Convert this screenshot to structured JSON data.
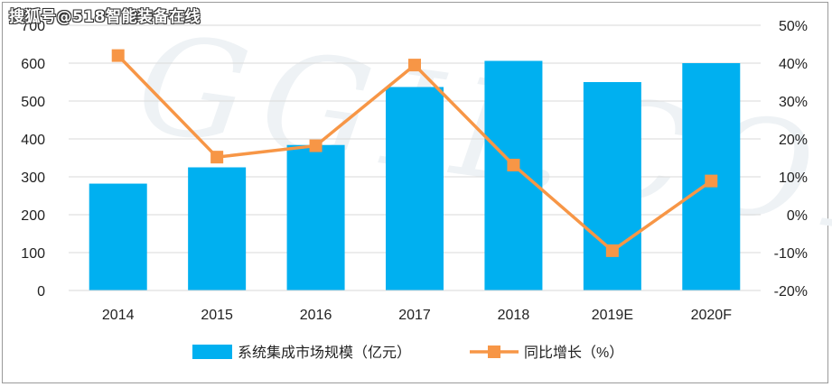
{
  "watermark": {
    "text": "搜狐号@518智能装备在线",
    "background_text": "GGII.COM"
  },
  "chart_data": {
    "type": "bar",
    "categories": [
      "2014",
      "2015",
      "2016",
      "2017",
      "2018",
      "2019E",
      "2020F"
    ],
    "series": [
      {
        "name": "系统集成市场规模（亿元）",
        "type": "bar",
        "axis": "left",
        "color": "#00b0f0",
        "values": [
          282,
          325,
          384,
          537,
          606,
          550,
          600
        ]
      },
      {
        "name": "同比增长（%）",
        "type": "line",
        "axis": "right",
        "color": "#f79646",
        "values": [
          42,
          15.2,
          18.2,
          39.5,
          13.1,
          -9.5,
          8.9
        ]
      }
    ],
    "y_left": {
      "ylim": [
        0,
        700
      ],
      "ticks": [
        "0",
        "100",
        "200",
        "300",
        "400",
        "500",
        "600",
        "700"
      ]
    },
    "y_right": {
      "ylim": [
        -20,
        50
      ],
      "ticks": [
        "-20%",
        "-10%",
        "0%",
        "10%",
        "20%",
        "30%",
        "40%",
        "50%"
      ]
    },
    "grid": true,
    "legend_position": "bottom"
  }
}
